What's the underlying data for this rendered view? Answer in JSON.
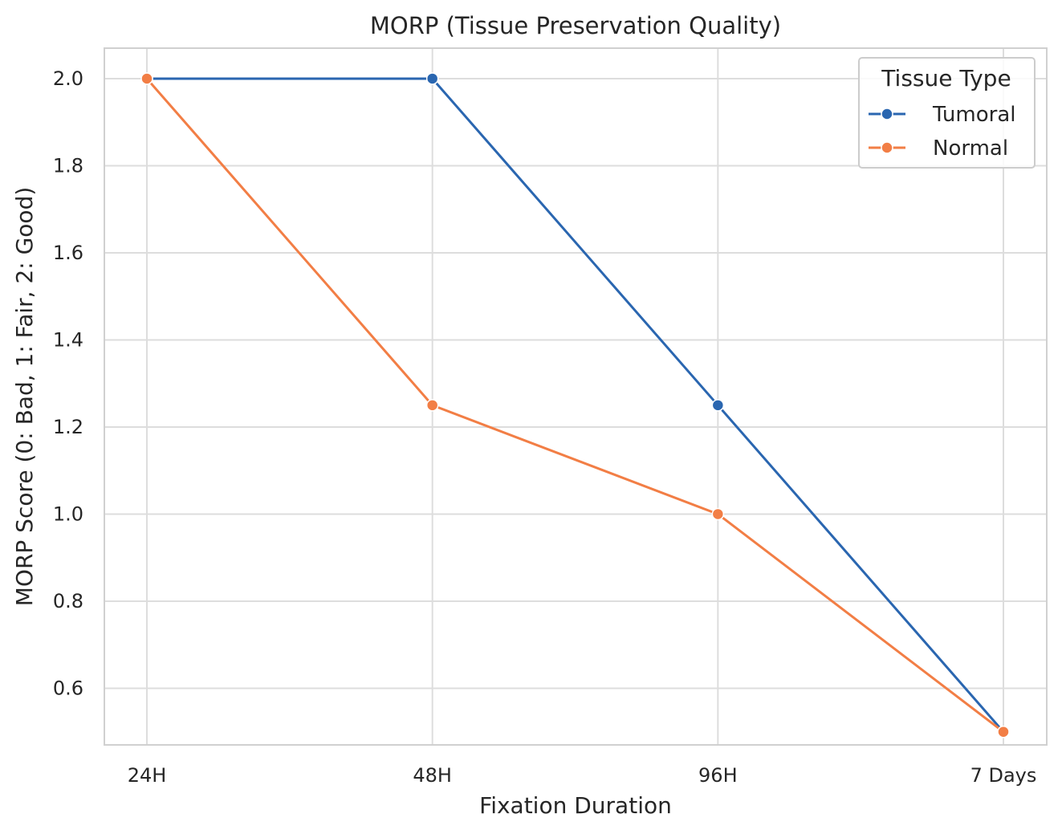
{
  "chart_data": {
    "type": "line",
    "title": "MORP (Tissue Preservation Quality)",
    "xlabel": "Fixation Duration",
    "ylabel": "MORP Score (0: Bad, 1: Fair, 2: Good)",
    "categories": [
      "24H",
      "48H",
      "96H",
      "7 Days"
    ],
    "ylim": [
      0.47,
      2.07
    ],
    "yticks": [
      0.6,
      0.8,
      1.0,
      1.2,
      1.4,
      1.6,
      1.8,
      2.0
    ],
    "ytick_labels": [
      "0.6",
      "0.8",
      "1.0",
      "1.2",
      "1.4",
      "1.6",
      "1.8",
      "2.0"
    ],
    "grid": true,
    "legend": {
      "title": "Tissue Type",
      "placement": "top-right"
    },
    "series": [
      {
        "name": "Tumoral",
        "color": "#2a66b0",
        "values": [
          2.0,
          2.0,
          1.25,
          0.5
        ]
      },
      {
        "name": "Normal",
        "color": "#f27e45",
        "values": [
          2.0,
          1.25,
          1.0,
          0.5
        ]
      }
    ]
  }
}
